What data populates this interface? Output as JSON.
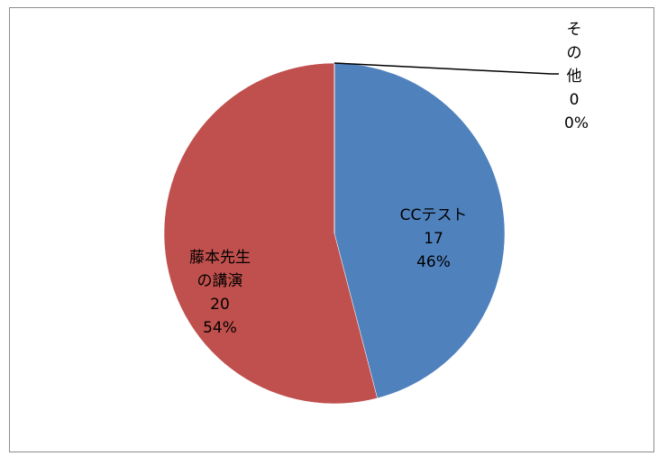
{
  "chart_data": {
    "type": "pie",
    "categories": [
      "CCテスト",
      "藤本先生の講演",
      "その他"
    ],
    "values": [
      17,
      20,
      0
    ],
    "percent_labels": [
      "46%",
      "54%",
      "0%"
    ],
    "colors": [
      "#4f81bd",
      "#c0504d",
      "#9bbb59"
    ]
  }
}
